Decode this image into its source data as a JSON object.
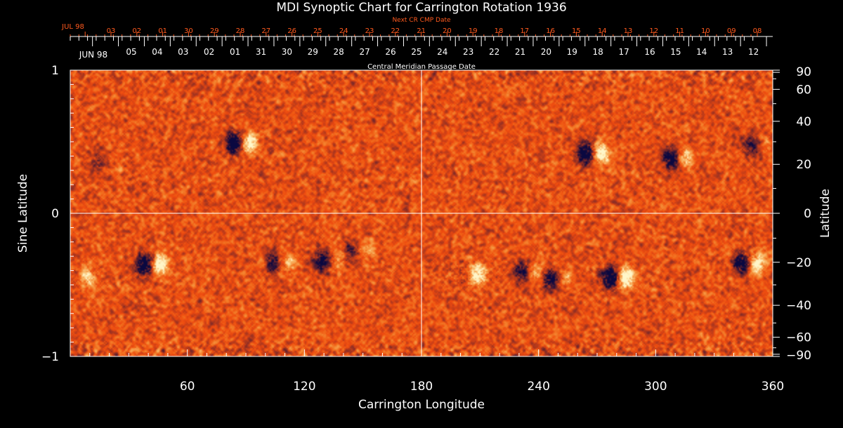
{
  "title": "MDI Synoptic Chart for Carrington Rotation 1936",
  "next_cr_label": "Next CR CMP Date",
  "cmp_label": "Central Meridian Passage Date",
  "chart_data": {
    "type": "heatmap",
    "title": "MDI Synoptic Chart for Carrington Rotation 1936",
    "xlabel": "Carrington Longitude",
    "ylabel_left": "Sine Latitude",
    "ylabel_right": "Latitude",
    "xlim": [
      0,
      360
    ],
    "ylim": [
      -1,
      1
    ],
    "x_ticks": [
      60,
      120,
      180,
      240,
      300,
      360
    ],
    "y_ticks_left": [
      -1,
      0,
      1
    ],
    "y_ticks_left_labels": [
      "−1",
      "0",
      "1"
    ],
    "y_ticks_right": [
      90,
      60,
      40,
      20,
      0,
      -20,
      -40,
      -60,
      -90
    ],
    "y_ticks_right_labels": [
      "90",
      "60",
      "40",
      "20",
      "0",
      "−20",
      "−40",
      "−60",
      "−90"
    ],
    "next_cr_month_label": "JUL 98",
    "next_cr_dates": [
      "03",
      "02",
      "01",
      "30",
      "29",
      "28",
      "27",
      "26",
      "25",
      "24",
      "23",
      "22",
      "21",
      "20",
      "19",
      "18",
      "17",
      "16",
      "15",
      "14",
      "13",
      "12",
      "11",
      "10",
      "09",
      "08"
    ],
    "cmp_month_label": "JUN 98",
    "cmp_dates": [
      "05",
      "04",
      "03",
      "02",
      "01",
      "31",
      "30",
      "29",
      "28",
      "27",
      "26",
      "25",
      "24",
      "23",
      "22",
      "21",
      "20",
      "19",
      "18",
      "17",
      "16",
      "15",
      "14",
      "13",
      "12"
    ],
    "colors": {
      "background": "#ee4a10",
      "positive": "#fff6c8",
      "negative": "#0a0a40",
      "grid": "#ffffff"
    },
    "active_regions": [
      {
        "lon": 88,
        "lat": 0.49,
        "neg": 1.0,
        "pos": 0.8
      },
      {
        "lon": 18,
        "lat": 0.35,
        "neg": 0.3,
        "pos": 0.0
      },
      {
        "lon": 42,
        "lat": -0.36,
        "neg": 1.0,
        "pos": 0.9
      },
      {
        "lon": 108,
        "lat": -0.35,
        "neg": 0.6,
        "pos": 0.4
      },
      {
        "lon": 133,
        "lat": -0.33,
        "neg": 0.7,
        "pos": 0.3
      },
      {
        "lon": 148,
        "lat": -0.26,
        "neg": 0.4,
        "pos": 0.3
      },
      {
        "lon": 268,
        "lat": 0.42,
        "neg": 1.0,
        "pos": 0.9
      },
      {
        "lon": 312,
        "lat": 0.38,
        "neg": 0.8,
        "pos": 0.5
      },
      {
        "lon": 353,
        "lat": 0.47,
        "neg": 0.5,
        "pos": 0.2
      },
      {
        "lon": 235,
        "lat": -0.41,
        "neg": 0.6,
        "pos": 0.4
      },
      {
        "lon": 250,
        "lat": -0.46,
        "neg": 0.7,
        "pos": 0.3
      },
      {
        "lon": 281,
        "lat": -0.45,
        "neg": 1.0,
        "pos": 1.0
      },
      {
        "lon": 348,
        "lat": -0.35,
        "neg": 0.9,
        "pos": 0.8
      },
      {
        "lon": 205,
        "lat": -0.43,
        "neg": 0.1,
        "pos": 0.7
      },
      {
        "lon": 5,
        "lat": -0.45,
        "neg": 0.1,
        "pos": 0.5
      }
    ]
  }
}
